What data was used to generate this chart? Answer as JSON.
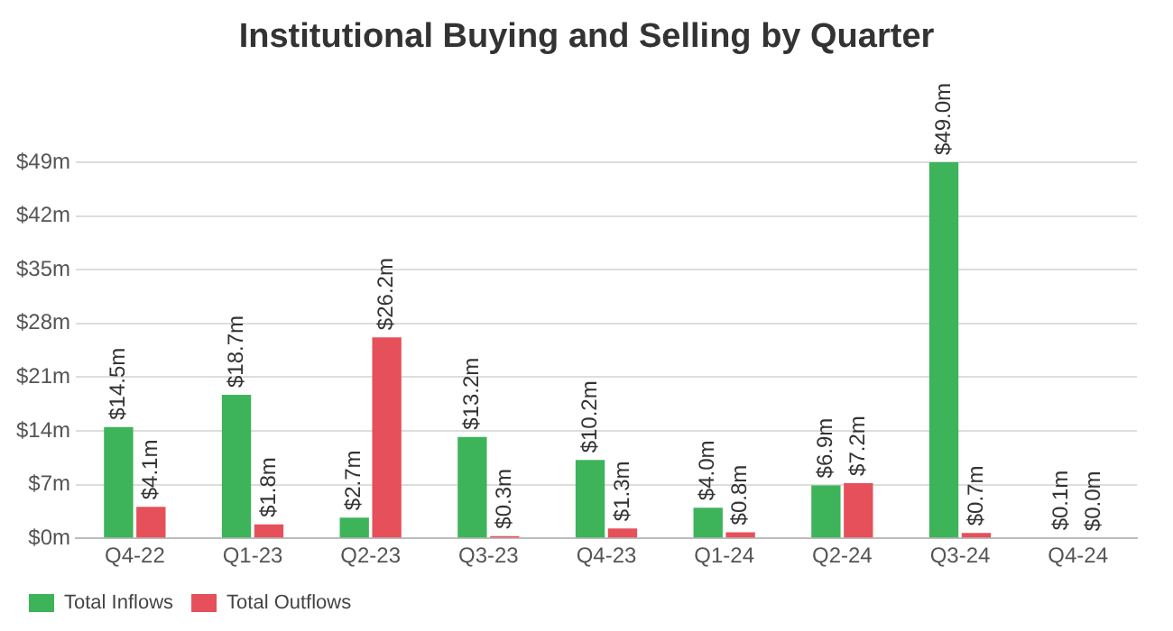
{
  "chart_data": {
    "type": "bar",
    "title": "Institutional Buying and Selling by Quarter",
    "categories": [
      "Q4-22",
      "Q1-23",
      "Q2-23",
      "Q3-23",
      "Q4-23",
      "Q1-24",
      "Q2-24",
      "Q3-24",
      "Q4-24"
    ],
    "series": [
      {
        "name": "Total Inflows",
        "color": "#3db35a",
        "values": [
          14.5,
          18.7,
          2.7,
          13.2,
          10.2,
          4.0,
          6.9,
          49.0,
          0.1
        ],
        "value_labels": [
          "$14.5m",
          "$18.7m",
          "$2.7m",
          "$13.2m",
          "$10.2m",
          "$4.0m",
          "$6.9m",
          "$49.0m",
          "$0.1m"
        ]
      },
      {
        "name": "Total Outflows",
        "color": "#e5505a",
        "values": [
          4.1,
          1.8,
          26.2,
          0.3,
          1.3,
          0.8,
          7.2,
          0.7,
          0.0
        ],
        "value_labels": [
          "$4.1m",
          "$1.8m",
          "$26.2m",
          "$0.3m",
          "$1.3m",
          "$0.8m",
          "$7.2m",
          "$0.7m",
          "$0.0m"
        ]
      }
    ],
    "ylim": [
      0,
      49
    ],
    "yticks": [
      {
        "value": 0,
        "label": "$0m"
      },
      {
        "value": 7,
        "label": "$7m"
      },
      {
        "value": 14,
        "label": "$14m"
      },
      {
        "value": 21,
        "label": "$21m"
      },
      {
        "value": 28,
        "label": "$28m"
      },
      {
        "value": 35,
        "label": "$35m"
      },
      {
        "value": 42,
        "label": "$42m"
      },
      {
        "value": 49,
        "label": "$49m"
      }
    ],
    "grid": "y",
    "legend": "bottom left"
  }
}
